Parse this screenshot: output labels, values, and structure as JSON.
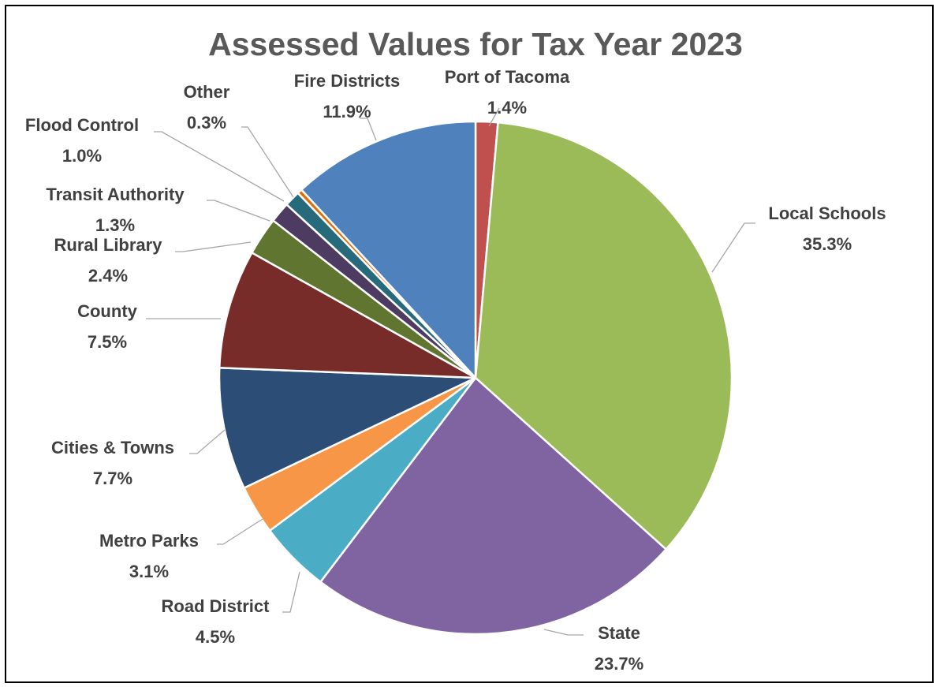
{
  "chart_data": {
    "type": "pie",
    "title": "Assessed Values for Tax Year 2023",
    "slices": [
      {
        "name": "Port of Tacoma",
        "value": 1.4,
        "label": "1.4%",
        "color": "#c0504d"
      },
      {
        "name": "Local Schools",
        "value": 35.3,
        "label": "35.3%",
        "color": "#9bbb59"
      },
      {
        "name": "State",
        "value": 23.7,
        "label": "23.7%",
        "color": "#8064a2"
      },
      {
        "name": "Road District",
        "value": 4.5,
        "label": "4.5%",
        "color": "#4bacc6"
      },
      {
        "name": "Metro Parks",
        "value": 3.1,
        "label": "3.1%",
        "color": "#f79646"
      },
      {
        "name": "Cities & Towns",
        "value": 7.7,
        "label": "7.7%",
        "color": "#2c4d75"
      },
      {
        "name": "County",
        "value": 7.5,
        "label": "7.5%",
        "color": "#772c2a"
      },
      {
        "name": "Rural Library",
        "value": 2.4,
        "label": "2.4%",
        "color": "#5f7530"
      },
      {
        "name": "Transit Authority",
        "value": 1.3,
        "label": "1.3%",
        "color": "#4d3b62"
      },
      {
        "name": "Flood Control",
        "value": 1.0,
        "label": "1.0%",
        "color": "#276a7c"
      },
      {
        "name": "Other",
        "value": 0.3,
        "label": "0.3%",
        "color": "#e36c09"
      },
      {
        "name": "Fire Districts",
        "value": 11.9,
        "label": "11.9%",
        "color": "#4f81bd"
      }
    ],
    "start_angle_deg": 0,
    "direction": "clockwise",
    "data_labels": "category name and percentage with leader lines"
  }
}
